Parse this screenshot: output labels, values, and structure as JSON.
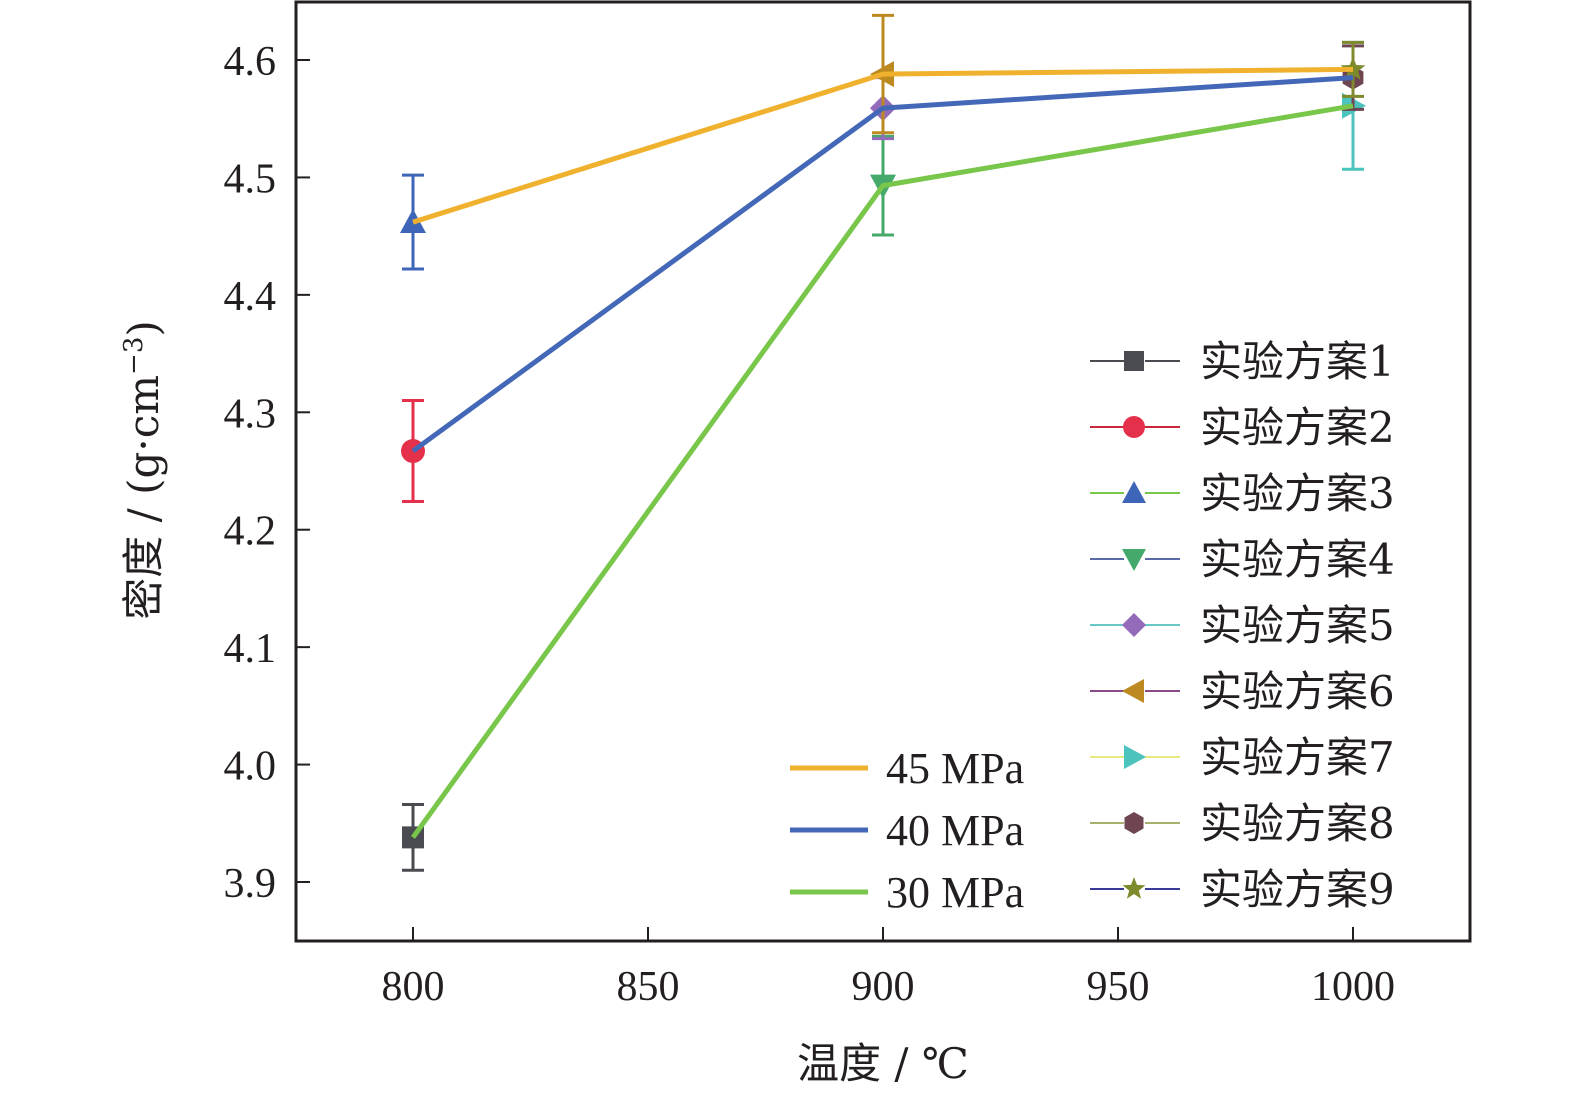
{
  "chart_data": {
    "type": "line",
    "title": "",
    "xlabel": "温度 / ℃",
    "ylabel": "密度 / (g·cm⁻³)",
    "ylabel_parts": {
      "prefix": "密度 / (g·cm",
      "sup": "−3",
      "suffix": ")"
    },
    "xlim": [
      775,
      1025
    ],
    "ylim": [
      3.85,
      4.65
    ],
    "xticks": [
      800,
      850,
      900,
      950,
      1000
    ],
    "xtick_labels": [
      "800",
      "850",
      "900",
      "950",
      "1000"
    ],
    "yticks": [
      3.9,
      4.0,
      4.1,
      4.2,
      4.3,
      4.4,
      4.5,
      4.6
    ],
    "ytick_labels": [
      "3.9",
      "4.0",
      "4.1",
      "4.2",
      "4.3",
      "4.4",
      "4.5",
      "4.6"
    ],
    "grid": false,
    "series": [
      {
        "name": "45 MPa",
        "color": "#f0b22e",
        "x": [
          800,
          900,
          1000
        ],
        "values": [
          4.462,
          4.588,
          4.592
        ]
      },
      {
        "name": "40 MPa",
        "color": "#4468b8",
        "x": [
          800,
          900,
          1000
        ],
        "values": [
          4.267,
          4.559,
          4.585
        ]
      },
      {
        "name": "30 MPa",
        "color": "#78c64a",
        "x": [
          800,
          900,
          1000
        ],
        "values": [
          3.938,
          4.493,
          4.561
        ]
      }
    ],
    "points": [
      {
        "name": "实验方案1",
        "x": 800,
        "y": 3.938,
        "err": 0.028,
        "marker": "square",
        "color": "#4a4b50",
        "legend_line": "#4a4b50"
      },
      {
        "name": "实验方案2",
        "x": 800,
        "y": 4.267,
        "err": 0.043,
        "marker": "circle",
        "color": "#e4304a",
        "legend_line": "#c8283c"
      },
      {
        "name": "实验方案3",
        "x": 800,
        "y": 4.462,
        "err": 0.04,
        "marker": "triangle-up",
        "color": "#3d66b8",
        "legend_line": "#78c64a"
      },
      {
        "name": "实验方案4",
        "x": 900,
        "y": 4.493,
        "err": 0.042,
        "marker": "triangle-down",
        "color": "#44a96a",
        "legend_line": "#5a6aa8"
      },
      {
        "name": "实验方案5",
        "x": 900,
        "y": 4.559,
        "err": 0.026,
        "marker": "diamond",
        "color": "#946bbb",
        "legend_line": "#68c8c8"
      },
      {
        "name": "实验方案6",
        "x": 900,
        "y": 4.588,
        "err": 0.05,
        "marker": "triangle-left",
        "color": "#bd8a22",
        "legend_line": "#8a4a8a"
      },
      {
        "name": "实验方案7",
        "x": 1000,
        "y": 4.561,
        "err": 0.054,
        "marker": "triangle-right",
        "color": "#4cc3bc",
        "legend_line": "#e8e880"
      },
      {
        "name": "实验方案8",
        "x": 1000,
        "y": 4.585,
        "err": 0.027,
        "marker": "hexagon",
        "color": "#6e4550",
        "legend_line": "#a8b070"
      },
      {
        "name": "实验方案9",
        "x": 1000,
        "y": 4.592,
        "err": 0.023,
        "marker": "star",
        "color": "#7e8a2c",
        "legend_line": "#3a3a98"
      }
    ],
    "legend_pressure_placement": "bottom-center",
    "legend_scheme_placement": "right"
  }
}
